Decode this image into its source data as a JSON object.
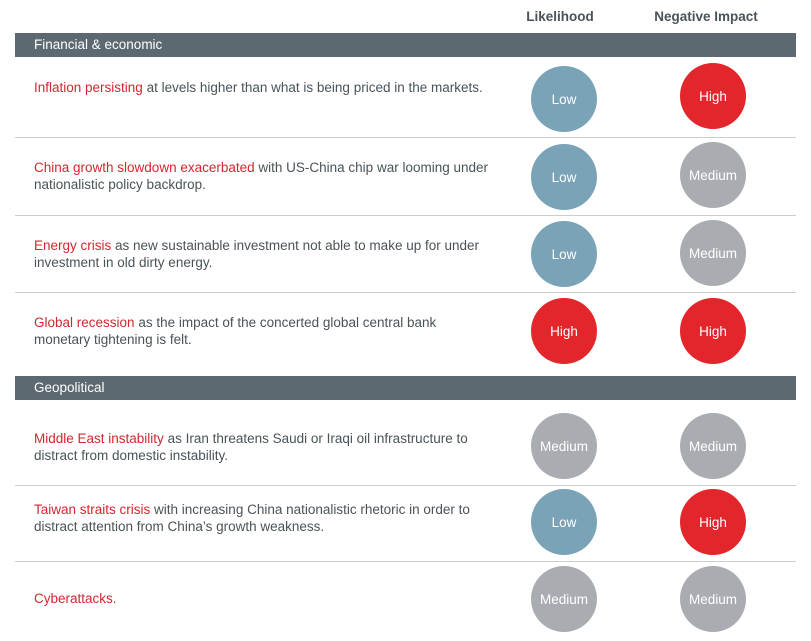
{
  "headers": {
    "likelihood": "Likelihood",
    "impact": "Negative Impact"
  },
  "sections": [
    {
      "title": "Financial & economic",
      "rows": [
        {
          "highlight": "Inflation persisting",
          "rest": " at levels higher than what is being priced in the markets.",
          "likelihood": "Low",
          "impact": "High"
        },
        {
          "highlight": "China growth slowdown exacerbated",
          "rest": " with US-China chip war looming under nationalistic policy backdrop.",
          "likelihood": "Low",
          "impact": "Medium"
        },
        {
          "highlight": "Energy crisis",
          "rest": " as new sustainable investment not able to make up for under investment in old dirty energy.",
          "likelihood": "Low",
          "impact": "Medium"
        },
        {
          "highlight": "Global recession",
          "rest": " as the impact of the concerted global central bank monetary tightening is felt.",
          "likelihood": "High",
          "impact": "High"
        }
      ]
    },
    {
      "title": "Geopolitical",
      "rows": [
        {
          "highlight": "Middle East instability",
          "rest": " as Iran threatens Saudi or Iraqi oil infrastructure to distract from domestic instability.",
          "likelihood": "Medium",
          "impact": "Medium"
        },
        {
          "highlight": "Taiwan straits crisis",
          "rest": " with increasing China nationalistic rhetoric in order to distract attention from China’s growth weakness.",
          "likelihood": "Low",
          "impact": "High"
        },
        {
          "highlight": "Cyberattacks.",
          "rest": "",
          "likelihood": "Medium",
          "impact": "Medium"
        }
      ]
    }
  ],
  "colors": {
    "low": "#7aa3b8",
    "medium": "#a9adb1",
    "high": "#e3262b",
    "highlight_text": "#d3272e",
    "section_bar": "#5c6971"
  }
}
